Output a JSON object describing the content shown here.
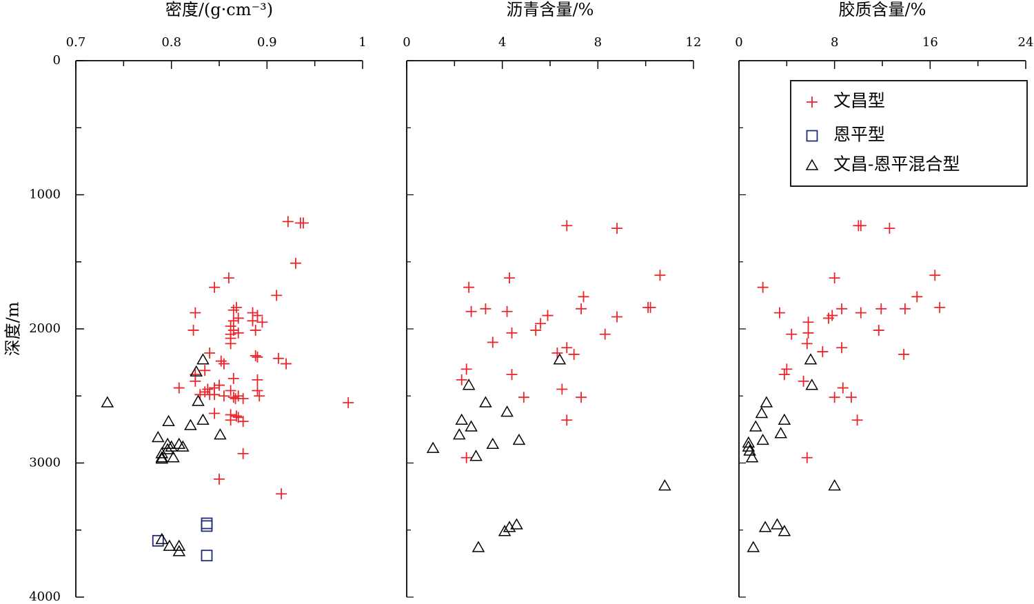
{
  "chart_data": {
    "type": "scatter",
    "shared_y": {
      "label": "深度/m",
      "range": [
        0,
        4000
      ],
      "inverted": true,
      "ticks": [
        0,
        1000,
        2000,
        3000,
        4000
      ],
      "tick_labels": [
        "0",
        "1000",
        "2000",
        "3000",
        "4000"
      ]
    },
    "legend": {
      "placement": "top-right",
      "entries": [
        {
          "label": "文昌型",
          "marker": "plus",
          "color": "#e8262b"
        },
        {
          "label": "恩平型",
          "marker": "square",
          "color": "#1f2a7a"
        },
        {
          "label": "文昌-恩平混合型",
          "marker": "triangle",
          "color": "#000000"
        }
      ]
    },
    "panels": [
      {
        "title": "密度/(g·cm⁻³)",
        "x_range": [
          0.7,
          1.0
        ],
        "x_ticks": [
          0.7,
          0.8,
          0.9,
          1.0
        ],
        "x_tick_labels": [
          "0.7",
          "0.8",
          "0.9",
          "1"
        ],
        "series": [
          {
            "marker": "plus",
            "color": "#e8262b",
            "points": [
              [
                0.922,
                1200
              ],
              [
                0.935,
                1210
              ],
              [
                0.938,
                1210
              ],
              [
                0.93,
                1510
              ],
              [
                0.86,
                1620
              ],
              [
                0.845,
                1690
              ],
              [
                0.91,
                1750
              ],
              [
                0.868,
                1840
              ],
              [
                0.865,
                1860
              ],
              [
                0.825,
                1880
              ],
              [
                0.885,
                1880
              ],
              [
                0.89,
                1900
              ],
              [
                0.87,
                1920
              ],
              [
                0.865,
                1940
              ],
              [
                0.885,
                1940
              ],
              [
                0.895,
                1950
              ],
              [
                0.862,
                1980
              ],
              [
                0.823,
                2010
              ],
              [
                0.865,
                2010
              ],
              [
                0.888,
                2010
              ],
              [
                0.862,
                2040
              ],
              [
                0.87,
                2030
              ],
              [
                0.862,
                2070
              ],
              [
                0.862,
                2110
              ],
              [
                0.84,
                2180
              ],
              [
                0.888,
                2200
              ],
              [
                0.89,
                2210
              ],
              [
                0.912,
                2220
              ],
              [
                0.852,
                2240
              ],
              [
                0.855,
                2260
              ],
              [
                0.92,
                2260
              ],
              [
                0.835,
                2310
              ],
              [
                0.825,
                2340
              ],
              [
                0.825,
                2390
              ],
              [
                0.865,
                2370
              ],
              [
                0.89,
                2380
              ],
              [
                0.85,
                2420
              ],
              [
                0.845,
                2440
              ],
              [
                0.808,
                2440
              ],
              [
                0.838,
                2450
              ],
              [
                0.835,
                2470
              ],
              [
                0.862,
                2460
              ],
              [
                0.89,
                2460
              ],
              [
                0.84,
                2490
              ],
              [
                0.845,
                2490
              ],
              [
                0.83,
                2490
              ],
              [
                0.855,
                2500
              ],
              [
                0.87,
                2500
              ],
              [
                0.892,
                2500
              ],
              [
                0.865,
                2510
              ],
              [
                0.867,
                2520
              ],
              [
                0.875,
                2520
              ],
              [
                0.985,
                2550
              ],
              [
                0.845,
                2630
              ],
              [
                0.862,
                2640
              ],
              [
                0.868,
                2650
              ],
              [
                0.87,
                2660
              ],
              [
                0.875,
                2690
              ],
              [
                0.862,
                2680
              ],
              [
                0.875,
                2930
              ],
              [
                0.85,
                3120
              ],
              [
                0.915,
                3230
              ]
            ]
          },
          {
            "marker": "square",
            "color": "#1f2a7a",
            "points": [
              [
                0.837,
                3450
              ],
              [
                0.837,
                3470
              ],
              [
                0.786,
                3580
              ],
              [
                0.837,
                3690
              ]
            ]
          },
          {
            "marker": "triangle",
            "color": "#000000",
            "points": [
              [
                0.733,
                2550
              ],
              [
                0.833,
                2230
              ],
              [
                0.826,
                2320
              ],
              [
                0.828,
                2540
              ],
              [
                0.833,
                2680
              ],
              [
                0.797,
                2690
              ],
              [
                0.82,
                2720
              ],
              [
                0.851,
                2790
              ],
              [
                0.786,
                2810
              ],
              [
                0.796,
                2860
              ],
              [
                0.808,
                2860
              ],
              [
                0.812,
                2880
              ],
              [
                0.8,
                2880
              ],
              [
                0.796,
                2900
              ],
              [
                0.79,
                2930
              ],
              [
                0.79,
                2960
              ],
              [
                0.802,
                2960
              ],
              [
                0.79,
                2970
              ],
              [
                0.79,
                3570
              ],
              [
                0.798,
                3620
              ],
              [
                0.808,
                3620
              ],
              [
                0.808,
                3660
              ]
            ]
          }
        ]
      },
      {
        "title": "沥青含量/%",
        "x_range": [
          0,
          12
        ],
        "x_ticks": [
          0,
          4,
          8,
          12
        ],
        "x_tick_labels": [
          "0",
          "4",
          "8",
          "12"
        ],
        "series": [
          {
            "marker": "plus",
            "color": "#e8262b",
            "points": [
              [
                6.7,
                1230
              ],
              [
                8.8,
                1250
              ],
              [
                10.6,
                1600
              ],
              [
                4.3,
                1620
              ],
              [
                2.6,
                1690
              ],
              [
                7.4,
                1760
              ],
              [
                2.7,
                1870
              ],
              [
                3.3,
                1850
              ],
              [
                4.2,
                1870
              ],
              [
                7.3,
                1850
              ],
              [
                10.1,
                1840
              ],
              [
                10.2,
                1840
              ],
              [
                5.9,
                1900
              ],
              [
                8.8,
                1910
              ],
              [
                5.6,
                1960
              ],
              [
                5.4,
                2010
              ],
              [
                4.4,
                2030
              ],
              [
                8.3,
                2040
              ],
              [
                3.6,
                2100
              ],
              [
                6.7,
                2140
              ],
              [
                6.3,
                2180
              ],
              [
                7.0,
                2190
              ],
              [
                2.5,
                2300
              ],
              [
                4.4,
                2340
              ],
              [
                2.3,
                2380
              ],
              [
                6.5,
                2450
              ],
              [
                4.9,
                2510
              ],
              [
                7.3,
                2510
              ],
              [
                6.7,
                2680
              ],
              [
                2.5,
                2960
              ]
            ]
          },
          {
            "marker": "triangle",
            "color": "#000000",
            "points": [
              [
                6.4,
                2230
              ],
              [
                2.6,
                2420
              ],
              [
                3.3,
                2550
              ],
              [
                4.2,
                2620
              ],
              [
                2.3,
                2680
              ],
              [
                2.7,
                2730
              ],
              [
                2.2,
                2790
              ],
              [
                3.6,
                2860
              ],
              [
                4.7,
                2830
              ],
              [
                1.1,
                2890
              ],
              [
                2.9,
                2950
              ],
              [
                10.8,
                3170
              ],
              [
                4.6,
                3460
              ],
              [
                4.3,
                3480
              ],
              [
                4.1,
                3510
              ],
              [
                3.0,
                3630
              ]
            ]
          }
        ]
      },
      {
        "title": "胶质含量/%",
        "x_range": [
          0,
          24
        ],
        "x_ticks": [
          0,
          8,
          16,
          24
        ],
        "x_tick_labels": [
          "0",
          "8",
          "16",
          "24"
        ],
        "series": [
          {
            "marker": "plus",
            "color": "#e8262b",
            "points": [
              [
                10.0,
                1230
              ],
              [
                10.2,
                1230
              ],
              [
                12.6,
                1250
              ],
              [
                16.4,
                1600
              ],
              [
                8.0,
                1620
              ],
              [
                2.0,
                1690
              ],
              [
                14.9,
                1760
              ],
              [
                3.4,
                1880
              ],
              [
                8.6,
                1850
              ],
              [
                10.2,
                1880
              ],
              [
                11.9,
                1850
              ],
              [
                13.9,
                1850
              ],
              [
                16.8,
                1840
              ],
              [
                7.8,
                1900
              ],
              [
                7.5,
                1920
              ],
              [
                5.8,
                1950
              ],
              [
                5.8,
                2030
              ],
              [
                4.4,
                2040
              ],
              [
                11.7,
                2010
              ],
              [
                5.7,
                2110
              ],
              [
                7.0,
                2170
              ],
              [
                8.6,
                2140
              ],
              [
                13.8,
                2190
              ],
              [
                4.0,
                2300
              ],
              [
                3.8,
                2340
              ],
              [
                5.4,
                2390
              ],
              [
                8.7,
                2440
              ],
              [
                8.0,
                2510
              ],
              [
                9.4,
                2510
              ],
              [
                9.9,
                2680
              ],
              [
                5.7,
                2960
              ]
            ]
          },
          {
            "marker": "triangle",
            "color": "#000000",
            "points": [
              [
                6.0,
                2230
              ],
              [
                6.1,
                2420
              ],
              [
                2.3,
                2550
              ],
              [
                1.9,
                2630
              ],
              [
                3.8,
                2680
              ],
              [
                1.4,
                2730
              ],
              [
                3.5,
                2780
              ],
              [
                2.0,
                2830
              ],
              [
                0.8,
                2850
              ],
              [
                0.8,
                2880
              ],
              [
                0.9,
                2910
              ],
              [
                1.1,
                2960
              ],
              [
                8.0,
                3170
              ],
              [
                3.2,
                3460
              ],
              [
                2.2,
                3480
              ],
              [
                3.8,
                3510
              ],
              [
                1.2,
                3630
              ]
            ]
          }
        ]
      }
    ]
  }
}
